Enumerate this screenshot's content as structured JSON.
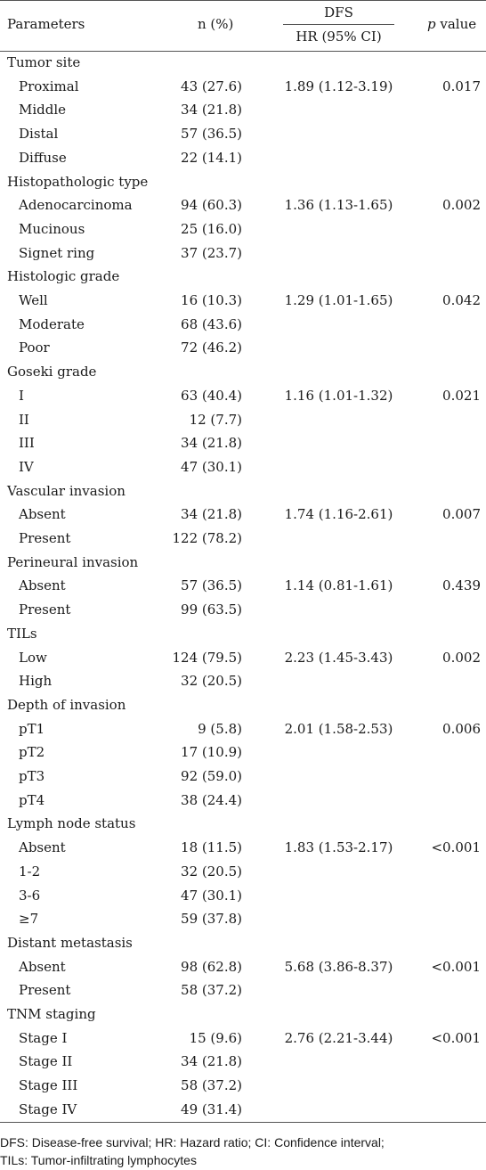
{
  "header": {
    "parameters": "Parameters",
    "n": "n (%)",
    "dfs": "DFS",
    "hr": "HR (95% CI)",
    "p_italic": "p",
    "p_rest": " value"
  },
  "rows": [
    {
      "param": "Tumor site",
      "n": "",
      "hr": "",
      "p": "",
      "sub": false
    },
    {
      "param": "Proximal",
      "n": "43 (27.6)",
      "hr": "1.89 (1.12-3.19)",
      "p": "0.017",
      "sub": true
    },
    {
      "param": "Middle",
      "n": "34 (21.8)",
      "hr": "",
      "p": "",
      "sub": true
    },
    {
      "param": "Distal",
      "n": "57 (36.5)",
      "hr": "",
      "p": "",
      "sub": true
    },
    {
      "param": "Diffuse",
      "n": "22 (14.1)",
      "hr": "",
      "p": "",
      "sub": true
    },
    {
      "param": "Histopathologic type",
      "n": "",
      "hr": "",
      "p": "",
      "sub": false
    },
    {
      "param": "Adenocarcinoma",
      "n": "94 (60.3)",
      "hr": "1.36 (1.13-1.65)",
      "p": "0.002",
      "sub": true
    },
    {
      "param": "Mucinous",
      "n": "25 (16.0)",
      "hr": "",
      "p": "",
      "sub": true
    },
    {
      "param": "Signet ring",
      "n": "37 (23.7)",
      "hr": "",
      "p": "",
      "sub": true
    },
    {
      "param": "Histologic grade",
      "n": "",
      "hr": "",
      "p": "",
      "sub": false
    },
    {
      "param": "Well",
      "n": "16 (10.3)",
      "hr": "1.29 (1.01-1.65)",
      "p": "0.042",
      "sub": true
    },
    {
      "param": "Moderate",
      "n": "68 (43.6)",
      "hr": "",
      "p": "",
      "sub": true
    },
    {
      "param": "Poor",
      "n": "72 (46.2)",
      "hr": "",
      "p": "",
      "sub": true
    },
    {
      "param": "Goseki grade",
      "n": "",
      "hr": "",
      "p": "",
      "sub": false
    },
    {
      "param": "I",
      "n": "63 (40.4)",
      "hr": "1.16 (1.01-1.32)",
      "p": "0.021",
      "sub": true
    },
    {
      "param": "II",
      "n": "12 (7.7)",
      "hr": "",
      "p": "",
      "sub": true
    },
    {
      "param": "III",
      "n": "34 (21.8)",
      "hr": "",
      "p": "",
      "sub": true
    },
    {
      "param": "IV",
      "n": "47 (30.1)",
      "hr": "",
      "p": "",
      "sub": true
    },
    {
      "param": "Vascular invasion",
      "n": "",
      "hr": "",
      "p": "",
      "sub": false
    },
    {
      "param": "Absent",
      "n": "34 (21.8)",
      "hr": "1.74 (1.16-2.61)",
      "p": "0.007",
      "sub": true
    },
    {
      "param": "Present",
      "n": "122 (78.2)",
      "hr": "",
      "p": "",
      "sub": true
    },
    {
      "param": "Perineural invasion",
      "n": "",
      "hr": "",
      "p": "",
      "sub": false
    },
    {
      "param": "Absent",
      "n": "57 (36.5)",
      "hr": "1.14 (0.81-1.61)",
      "p": "0.439",
      "sub": true
    },
    {
      "param": "Present",
      "n": "99 (63.5)",
      "hr": "",
      "p": "",
      "sub": true
    },
    {
      "param": "TILs",
      "n": "",
      "hr": "",
      "p": "",
      "sub": false
    },
    {
      "param": "Low",
      "n": "124 (79.5)",
      "hr": "2.23 (1.45-3.43)",
      "p": "0.002",
      "sub": true
    },
    {
      "param": "High",
      "n": "32 (20.5)",
      "hr": "",
      "p": "",
      "sub": true
    },
    {
      "param": "Depth of invasion",
      "n": "",
      "hr": "",
      "p": "",
      "sub": false
    },
    {
      "param": "pT1",
      "n": "9 (5.8)",
      "hr": "2.01 (1.58-2.53)",
      "p": "0.006",
      "sub": true
    },
    {
      "param": "pT2",
      "n": "17 (10.9)",
      "hr": "",
      "p": "",
      "sub": true
    },
    {
      "param": "pT3",
      "n": "92 (59.0)",
      "hr": "",
      "p": "",
      "sub": true
    },
    {
      "param": "pT4",
      "n": "38 (24.4)",
      "hr": "",
      "p": "",
      "sub": true
    },
    {
      "param": "Lymph node status",
      "n": "",
      "hr": "",
      "p": "",
      "sub": false
    },
    {
      "param": "Absent",
      "n": "18 (11.5)",
      "hr": "1.83 (1.53-2.17)",
      "p": "<0.001",
      "sub": true
    },
    {
      "param": "1-2",
      "n": "32 (20.5)",
      "hr": "",
      "p": "",
      "sub": true
    },
    {
      "param": "3-6",
      "n": "47 (30.1)",
      "hr": "",
      "p": "",
      "sub": true
    },
    {
      "param": "≥7",
      "n": "59 (37.8)",
      "hr": "",
      "p": "",
      "sub": true
    },
    {
      "param": "Distant metastasis",
      "n": "",
      "hr": "",
      "p": "",
      "sub": false
    },
    {
      "param": "Absent",
      "n": "98 (62.8)",
      "hr": "5.68 (3.86-8.37)",
      "p": "<0.001",
      "sub": true
    },
    {
      "param": "Present",
      "n": "58 (37.2)",
      "hr": "",
      "p": "",
      "sub": true
    },
    {
      "param": "TNM staging",
      "n": "",
      "hr": "",
      "p": "",
      "sub": false
    },
    {
      "param": "Stage I",
      "n": "15 (9.6)",
      "hr": "2.76 (2.21-3.44)",
      "p": "<0.001",
      "sub": true
    },
    {
      "param": "Stage II",
      "n": "34 (21.8)",
      "hr": "",
      "p": "",
      "sub": true
    },
    {
      "param": "Stage III",
      "n": "58 (37.2)",
      "hr": "",
      "p": "",
      "sub": true
    },
    {
      "param": "Stage IV",
      "n": "49 (31.4)",
      "hr": "",
      "p": "",
      "sub": true
    }
  ],
  "footnote": {
    "line1": "DFS: Disease-free survival; HR: Hazard ratio; CI: Confidence interval;",
    "line2": "TILs: Tumor-infiltrating lymphocytes"
  }
}
